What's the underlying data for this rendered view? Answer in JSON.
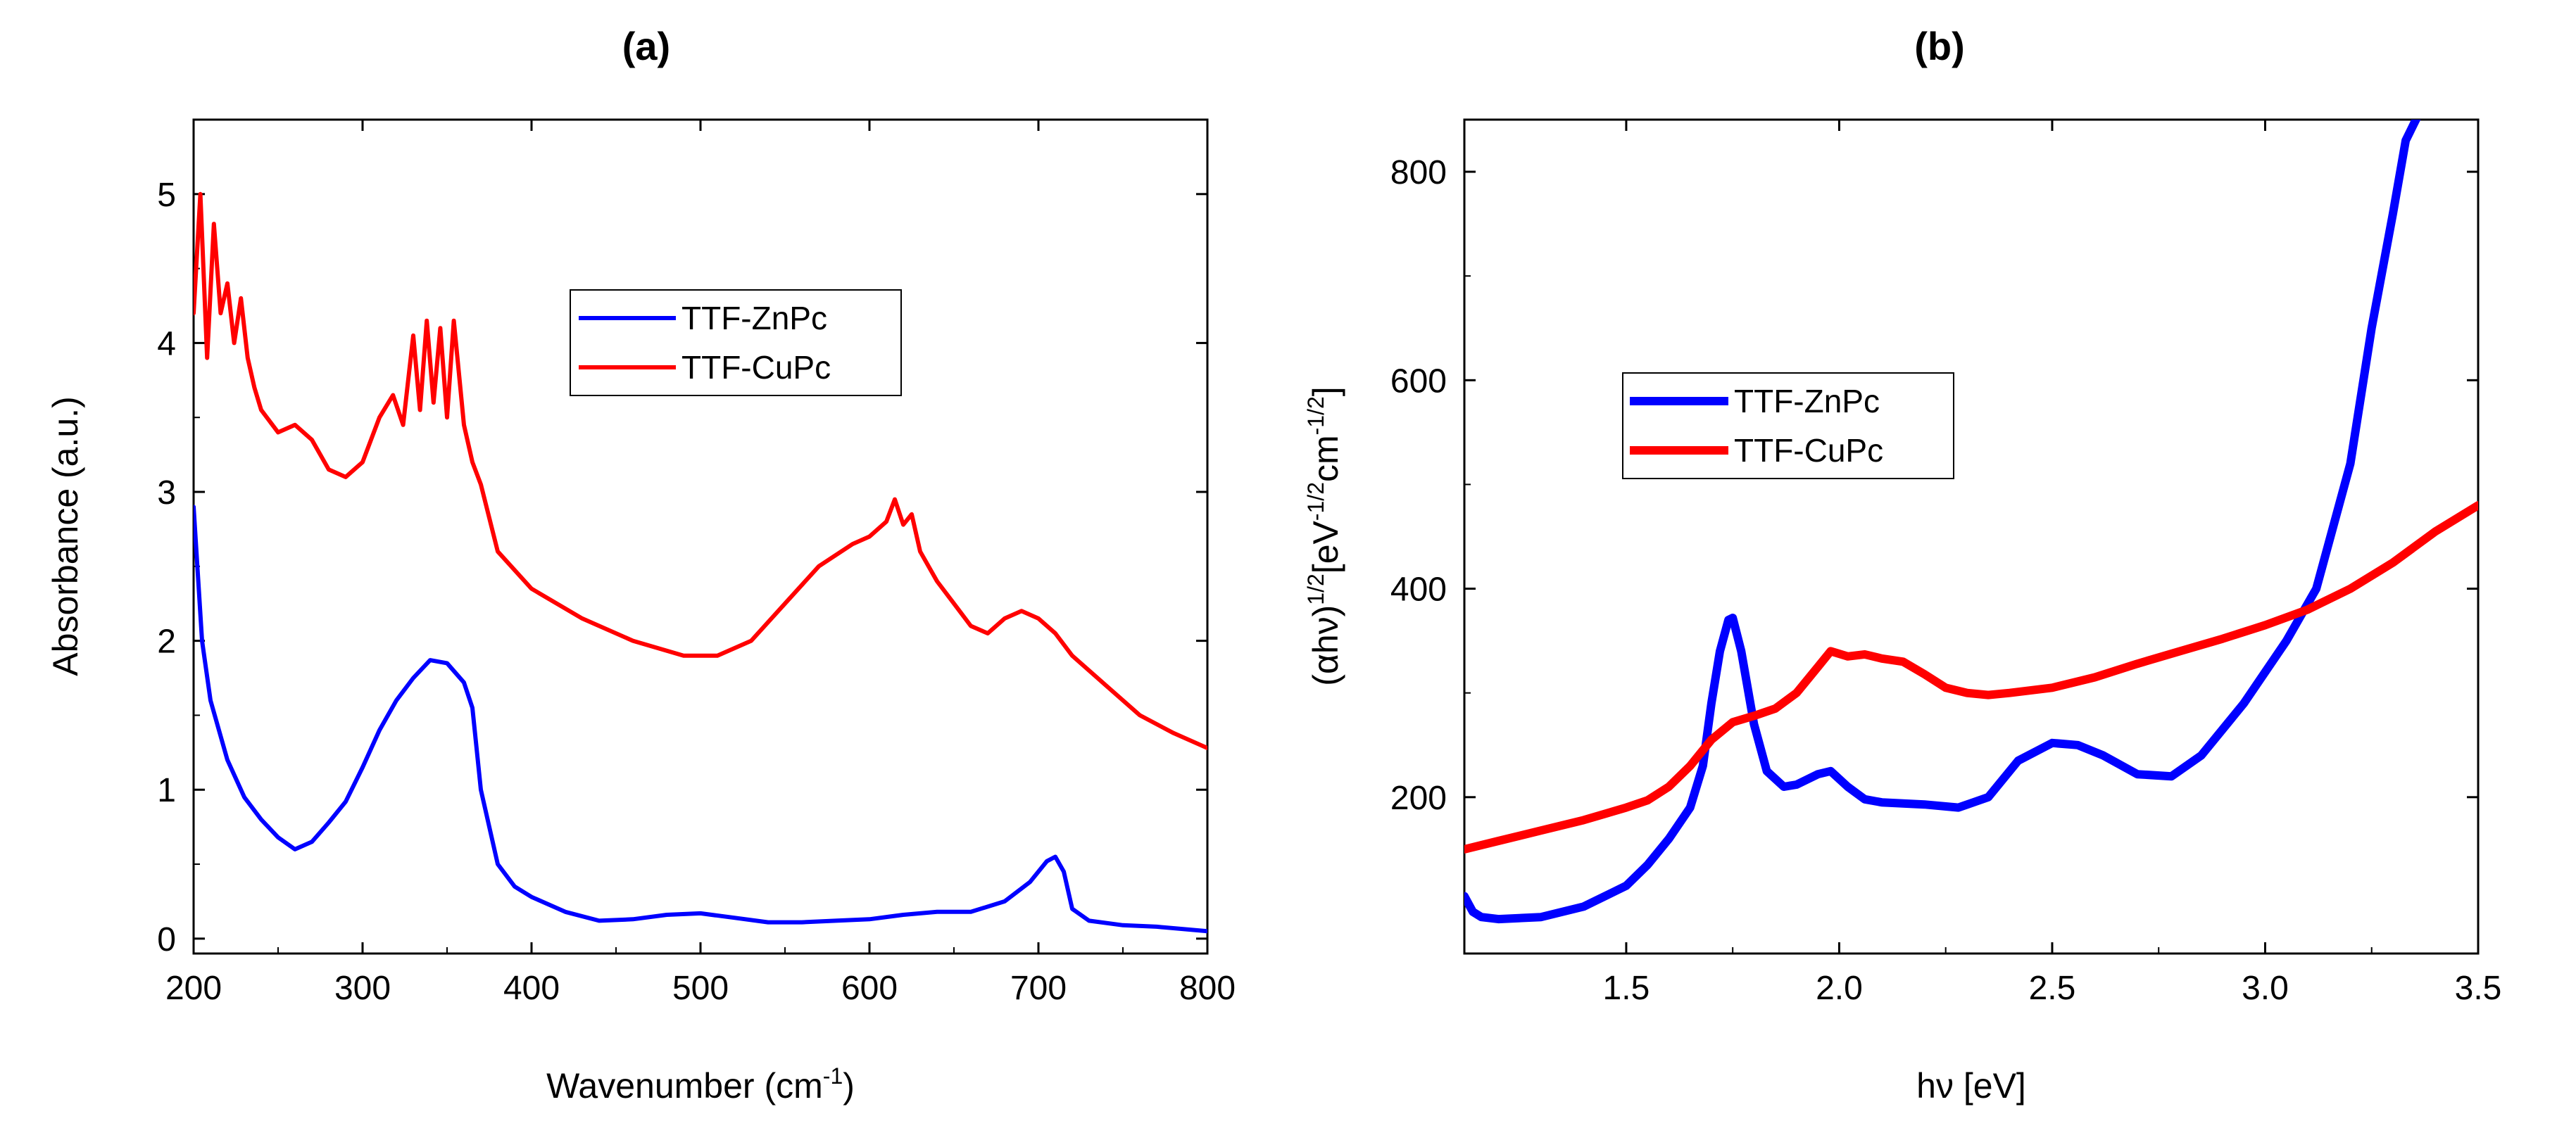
{
  "chart_data": [
    {
      "type": "line",
      "panel_label": "(a)",
      "xlabel": "Wavenumber (cm",
      "xlabel_sup": "-1",
      "xlabel_end": ")",
      "ylabel": "Absorbance (a.u.)",
      "xlim": [
        200,
        800
      ],
      "ylim": [
        -0.1,
        5.5
      ],
      "x_ticks": [
        200,
        300,
        400,
        500,
        600,
        700,
        800
      ],
      "y_ticks": [
        0,
        1,
        2,
        3,
        4,
        5
      ],
      "legend_position": "upper-center",
      "series": [
        {
          "name": "TTF-ZnPc",
          "color": "#0000ff",
          "x": [
            200,
            205,
            210,
            220,
            230,
            240,
            250,
            260,
            270,
            280,
            290,
            300,
            310,
            320,
            330,
            340,
            350,
            360,
            365,
            370,
            380,
            390,
            400,
            420,
            440,
            460,
            480,
            500,
            520,
            540,
            560,
            580,
            600,
            620,
            640,
            660,
            680,
            695,
            705,
            710,
            715,
            720,
            730,
            750,
            770,
            800
          ],
          "y": [
            2.9,
            2.0,
            1.6,
            1.2,
            0.95,
            0.8,
            0.68,
            0.6,
            0.65,
            0.78,
            0.92,
            1.15,
            1.4,
            1.6,
            1.75,
            1.87,
            1.85,
            1.72,
            1.55,
            1.0,
            0.5,
            0.35,
            0.28,
            0.18,
            0.12,
            0.13,
            0.16,
            0.17,
            0.14,
            0.11,
            0.11,
            0.12,
            0.13,
            0.16,
            0.18,
            0.18,
            0.25,
            0.38,
            0.52,
            0.55,
            0.45,
            0.2,
            0.12,
            0.09,
            0.08,
            0.05
          ]
        },
        {
          "name": "TTF-CuPc",
          "color": "#ff0000",
          "x": [
            200,
            204,
            208,
            212,
            216,
            220,
            224,
            228,
            232,
            236,
            240,
            250,
            260,
            270,
            280,
            290,
            300,
            310,
            318,
            324,
            330,
            334,
            338,
            342,
            346,
            350,
            354,
            360,
            365,
            370,
            380,
            400,
            430,
            460,
            490,
            510,
            530,
            550,
            570,
            590,
            600,
            610,
            615,
            620,
            625,
            630,
            640,
            650,
            660,
            670,
            680,
            690,
            700,
            710,
            720,
            740,
            760,
            780,
            800
          ],
          "y": [
            4.2,
            5.0,
            3.9,
            4.8,
            4.2,
            4.4,
            4.0,
            4.3,
            3.9,
            3.7,
            3.55,
            3.4,
            3.45,
            3.35,
            3.15,
            3.1,
            3.2,
            3.5,
            3.65,
            3.45,
            4.05,
            3.55,
            4.15,
            3.6,
            4.1,
            3.5,
            4.15,
            3.45,
            3.2,
            3.05,
            2.6,
            2.35,
            2.15,
            2.0,
            1.9,
            1.9,
            2.0,
            2.25,
            2.5,
            2.65,
            2.7,
            2.8,
            2.95,
            2.78,
            2.85,
            2.6,
            2.4,
            2.25,
            2.1,
            2.05,
            2.15,
            2.2,
            2.15,
            2.05,
            1.9,
            1.7,
            1.5,
            1.38,
            1.28
          ]
        }
      ]
    },
    {
      "type": "line",
      "panel_label": "(b)",
      "xlabel": "hν [eV]",
      "ylabel_prefix": "(αhν)",
      "ylabel_sup1": "1/2",
      "ylabel_mid": "[eV",
      "ylabel_sup2": "-1/2",
      "ylabel_unit": "cm",
      "ylabel_sup3": "-1/2",
      "ylabel_end": "]",
      "xlim": [
        1.12,
        3.5
      ],
      "ylim": [
        50,
        850
      ],
      "x_ticks": [
        1.5,
        2.0,
        2.5,
        3.0,
        3.5
      ],
      "x_tick_labels": [
        "1.5",
        "2.0",
        "2.5",
        "3.0",
        "3.5"
      ],
      "y_ticks": [
        200,
        400,
        600,
        800
      ],
      "legend_position": "middle-left",
      "series": [
        {
          "name": "TTF-ZnPc",
          "color": "#0000ff",
          "x": [
            1.12,
            1.14,
            1.16,
            1.2,
            1.3,
            1.4,
            1.5,
            1.55,
            1.6,
            1.65,
            1.68,
            1.7,
            1.72,
            1.74,
            1.75,
            1.77,
            1.8,
            1.83,
            1.87,
            1.9,
            1.95,
            1.98,
            2.02,
            2.06,
            2.1,
            2.2,
            2.28,
            2.35,
            2.42,
            2.5,
            2.56,
            2.62,
            2.7,
            2.78,
            2.85,
            2.95,
            3.05,
            3.12,
            3.2,
            3.25,
            3.3,
            3.33,
            3.36
          ],
          "y": [
            105,
            90,
            85,
            83,
            85,
            95,
            115,
            135,
            160,
            190,
            230,
            290,
            340,
            370,
            372,
            340,
            270,
            225,
            210,
            212,
            222,
            225,
            210,
            198,
            195,
            193,
            190,
            200,
            235,
            252,
            250,
            240,
            222,
            220,
            240,
            290,
            350,
            400,
            520,
            650,
            760,
            830,
            855
          ]
        },
        {
          "name": "TTF-CuPc",
          "color": "#ff0000",
          "x": [
            1.12,
            1.2,
            1.3,
            1.4,
            1.5,
            1.55,
            1.6,
            1.65,
            1.7,
            1.75,
            1.8,
            1.85,
            1.9,
            1.95,
            1.98,
            2.02,
            2.06,
            2.1,
            2.15,
            2.2,
            2.25,
            2.3,
            2.35,
            2.4,
            2.5,
            2.6,
            2.7,
            2.8,
            2.9,
            3.0,
            3.1,
            3.2,
            3.3,
            3.4,
            3.5
          ],
          "y": [
            150,
            158,
            168,
            178,
            190,
            197,
            210,
            230,
            255,
            272,
            278,
            285,
            300,
            325,
            340,
            335,
            337,
            333,
            330,
            318,
            305,
            300,
            298,
            300,
            305,
            315,
            328,
            340,
            352,
            365,
            380,
            400,
            425,
            455,
            480
          ]
        }
      ]
    }
  ]
}
